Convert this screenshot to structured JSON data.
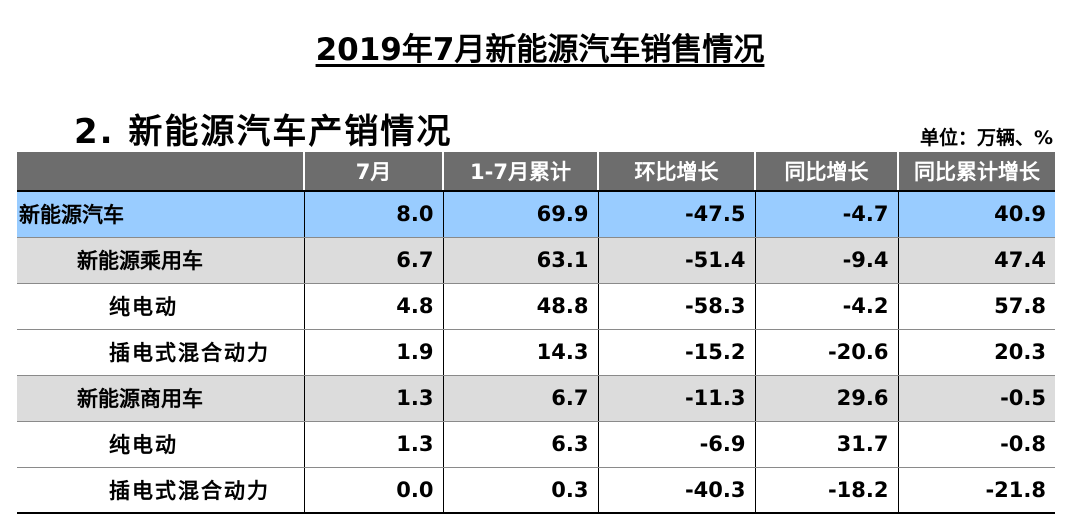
{
  "doc_title": "2019年7月新能源汽车销售情况",
  "section_title": "2. 新能源汽车产销情况",
  "unit_label": "单位：万辆、%",
  "table": {
    "headers": [
      "",
      "7月",
      "1-7月累计",
      "环比增长",
      "同比增长",
      "同比累计增长"
    ],
    "rows": [
      {
        "name": "新能源汽车",
        "cells": [
          "8.0",
          "69.9",
          "-47.5",
          "-4.7",
          "40.9"
        ]
      },
      {
        "name": "新能源乘用车",
        "cells": [
          "6.7",
          "63.1",
          "-51.4",
          "-9.4",
          "47.4"
        ]
      },
      {
        "name": "纯电动",
        "cells": [
          "4.8",
          "48.8",
          "-58.3",
          "-4.2",
          "57.8"
        ]
      },
      {
        "name": "插电式混合动力",
        "cells": [
          "1.9",
          "14.3",
          "-15.2",
          "-20.6",
          "20.3"
        ]
      },
      {
        "name": "新能源商用车",
        "cells": [
          "1.3",
          "6.7",
          "-11.3",
          "29.6",
          "-0.5"
        ]
      },
      {
        "name": "纯电动",
        "cells": [
          "1.3",
          "6.3",
          "-6.9",
          "31.7",
          "-0.8"
        ]
      },
      {
        "name": "插电式混合动力",
        "cells": [
          "0.0",
          "0.3",
          "-40.3",
          "-18.2",
          "-21.8"
        ]
      }
    ]
  },
  "colors": {
    "header_bg": "#6d6d6d",
    "total_row_bg": "#99ccff",
    "category_row_bg": "#dcdcdc"
  }
}
